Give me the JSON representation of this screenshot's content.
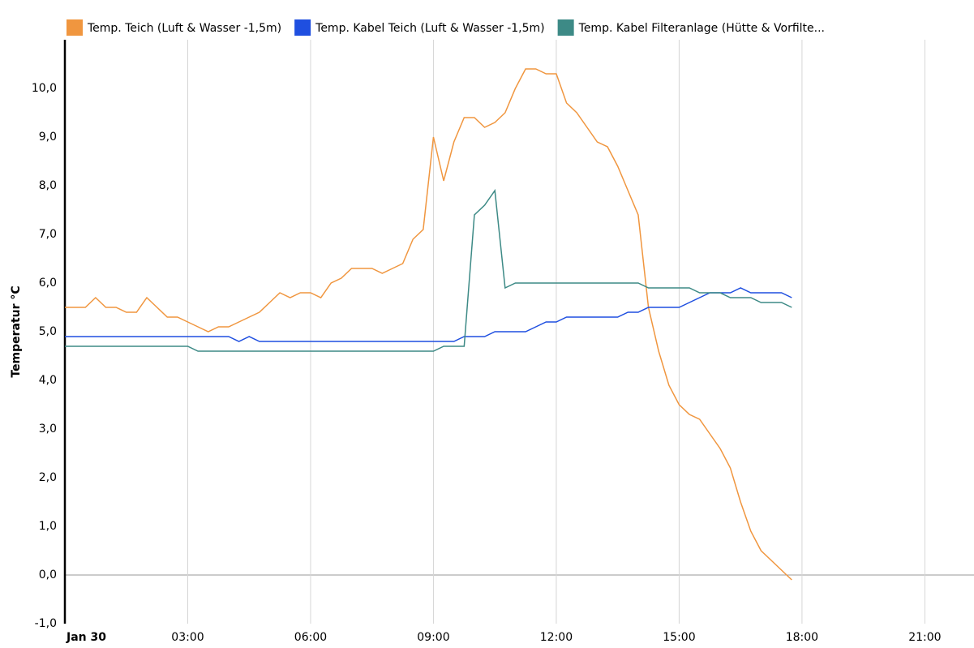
{
  "chart_data": {
    "type": "line",
    "ylabel": "Temperatur °C",
    "x": [
      0,
      0.25,
      0.5,
      0.75,
      1,
      1.25,
      1.5,
      1.75,
      2,
      2.25,
      2.5,
      2.75,
      3,
      3.25,
      3.5,
      3.75,
      4,
      4.25,
      4.5,
      4.75,
      5,
      5.25,
      5.5,
      5.75,
      6,
      6.25,
      6.5,
      6.75,
      7,
      7.25,
      7.5,
      7.75,
      8,
      8.25,
      8.5,
      8.75,
      9,
      9.25,
      9.5,
      9.75,
      10,
      10.25,
      10.5,
      10.75,
      11,
      11.25,
      11.5,
      11.75,
      12,
      12.25,
      12.5,
      12.75,
      13,
      13.25,
      13.5,
      13.75,
      14,
      14.25,
      14.5,
      14.75,
      15,
      15.25,
      15.5,
      15.75,
      16,
      16.25,
      16.5,
      16.75,
      17,
      17.25,
      17.5,
      17.75
    ],
    "series": [
      {
        "name": "Temp. Teich (Luft & Wasser -1,5m)",
        "color": "#f0963f",
        "values": [
          5.5,
          5.5,
          5.5,
          5.7,
          5.5,
          5.5,
          5.4,
          5.4,
          5.7,
          5.5,
          5.3,
          5.3,
          5.2,
          5.1,
          5.0,
          5.1,
          5.1,
          5.2,
          5.3,
          5.4,
          5.6,
          5.8,
          5.7,
          5.8,
          5.8,
          5.7,
          6.0,
          6.1,
          6.3,
          6.3,
          6.3,
          6.2,
          6.3,
          6.4,
          6.9,
          7.1,
          9.0,
          8.1,
          8.9,
          9.4,
          9.4,
          9.2,
          9.3,
          9.5,
          10.0,
          10.4,
          10.4,
          10.3,
          10.3,
          9.7,
          9.5,
          9.2,
          8.9,
          8.8,
          8.4,
          7.9,
          7.4,
          5.5,
          4.6,
          3.9,
          3.5,
          3.3,
          3.2,
          2.9,
          2.6,
          2.2,
          1.5,
          0.9,
          0.5,
          0.3,
          0.1,
          -0.1
        ]
      },
      {
        "name": "Temp. Kabel Teich (Luft & Wasser -1,5m)",
        "color": "#1f4fe0",
        "values": [
          4.9,
          4.9,
          4.9,
          4.9,
          4.9,
          4.9,
          4.9,
          4.9,
          4.9,
          4.9,
          4.9,
          4.9,
          4.9,
          4.9,
          4.9,
          4.9,
          4.9,
          4.8,
          4.9,
          4.8,
          4.8,
          4.8,
          4.8,
          4.8,
          4.8,
          4.8,
          4.8,
          4.8,
          4.8,
          4.8,
          4.8,
          4.8,
          4.8,
          4.8,
          4.8,
          4.8,
          4.8,
          4.8,
          4.8,
          4.9,
          4.9,
          4.9,
          5.0,
          5.0,
          5.0,
          5.0,
          5.1,
          5.2,
          5.2,
          5.3,
          5.3,
          5.3,
          5.3,
          5.3,
          5.3,
          5.4,
          5.4,
          5.5,
          5.5,
          5.5,
          5.5,
          5.6,
          5.7,
          5.8,
          5.8,
          5.8,
          5.9,
          5.8,
          5.8,
          5.8,
          5.8,
          5.7
        ]
      },
      {
        "name": "Temp. Kabel Filteranlage (Hütte & Vorfilte...",
        "color": "#3d8a86",
        "values": [
          4.7,
          4.7,
          4.7,
          4.7,
          4.7,
          4.7,
          4.7,
          4.7,
          4.7,
          4.7,
          4.7,
          4.7,
          4.7,
          4.6,
          4.6,
          4.6,
          4.6,
          4.6,
          4.6,
          4.6,
          4.6,
          4.6,
          4.6,
          4.6,
          4.6,
          4.6,
          4.6,
          4.6,
          4.6,
          4.6,
          4.6,
          4.6,
          4.6,
          4.6,
          4.6,
          4.6,
          4.6,
          4.7,
          4.7,
          4.7,
          7.4,
          7.6,
          7.9,
          5.9,
          6.0,
          6.0,
          6.0,
          6.0,
          6.0,
          6.0,
          6.0,
          6.0,
          6.0,
          6.0,
          6.0,
          6.0,
          6.0,
          5.9,
          5.9,
          5.9,
          5.9,
          5.9,
          5.8,
          5.8,
          5.8,
          5.7,
          5.7,
          5.7,
          5.6,
          5.6,
          5.6,
          5.5
        ]
      }
    ],
    "xlim": [
      0,
      22.2
    ],
    "xticks": [
      {
        "value": 0,
        "label": "Jan 30"
      },
      {
        "value": 3,
        "label": "03:00"
      },
      {
        "value": 6,
        "label": "06:00"
      },
      {
        "value": 9,
        "label": "09:00"
      },
      {
        "value": 12,
        "label": "12:00"
      },
      {
        "value": 15,
        "label": "15:00"
      },
      {
        "value": 18,
        "label": "18:00"
      },
      {
        "value": 21,
        "label": "21:00"
      }
    ],
    "ylim": [
      -1,
      11
    ],
    "yticks": [
      {
        "value": -1,
        "label": "-1,0"
      },
      {
        "value": 0,
        "label": "0,0"
      },
      {
        "value": 1,
        "label": "1,0"
      },
      {
        "value": 2,
        "label": "2,0"
      },
      {
        "value": 3,
        "label": "3,0"
      },
      {
        "value": 4,
        "label": "4,0"
      },
      {
        "value": 5,
        "label": "5,0"
      },
      {
        "value": 6,
        "label": "6,0"
      },
      {
        "value": 7,
        "label": "7,0"
      },
      {
        "value": 8,
        "label": "8,0"
      },
      {
        "value": 9,
        "label": "9,0"
      },
      {
        "value": 10,
        "label": "10,0"
      }
    ],
    "grid": true,
    "legend": "top"
  }
}
